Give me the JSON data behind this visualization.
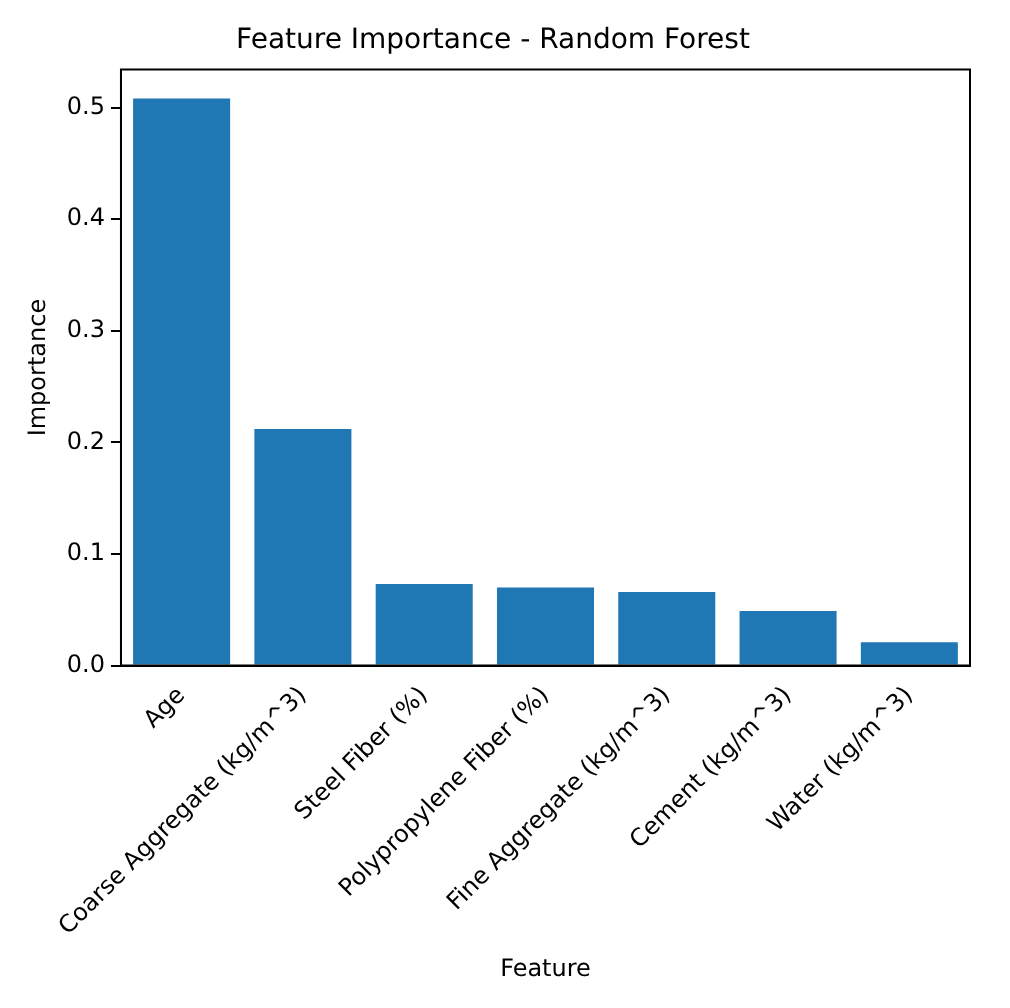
{
  "chart_data": {
    "type": "bar",
    "title": "Feature Importance - Random Forest",
    "xlabel": "Feature",
    "ylabel": "Importance",
    "categories": [
      "Age",
      "Coarse Aggregate (kg/m^3)",
      "Steel Fiber (%)",
      "Polypropylene Fiber (%)",
      "Fine Aggregate (kg/m^3)",
      "Cement (kg/m^3)",
      "Water (kg/m^3)"
    ],
    "values": [
      0.508,
      0.212,
      0.073,
      0.07,
      0.066,
      0.049,
      0.021
    ],
    "color": "#1f77b4",
    "ylim": [
      0,
      0.534
    ],
    "yticks": [
      {
        "value": 0,
        "label": "0.0"
      },
      {
        "value": 0.1,
        "label": "0.1"
      },
      {
        "value": 0.2,
        "label": "0.2"
      },
      {
        "value": 0.3,
        "label": "0.3"
      },
      {
        "value": 0.4,
        "label": "0.4"
      },
      {
        "value": 0.5,
        "label": "0.5"
      }
    ],
    "grid": false,
    "legend": false
  }
}
